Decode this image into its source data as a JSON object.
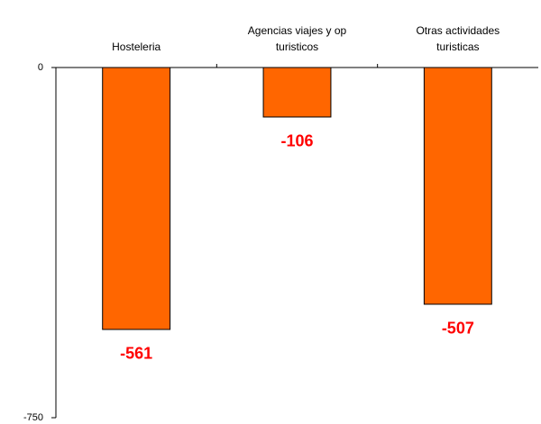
{
  "chart_data": {
    "type": "bar",
    "categories": [
      "Hosteleria",
      "Agencias viajes y op turisticos",
      "Otras actividades turisticas"
    ],
    "values": [
      -561,
      -106,
      -507
    ],
    "color": "#ff6600",
    "label_color": "#ff0000",
    "ylim": [
      -750,
      0
    ],
    "yticks": [
      -750,
      0
    ],
    "grid": false
  }
}
